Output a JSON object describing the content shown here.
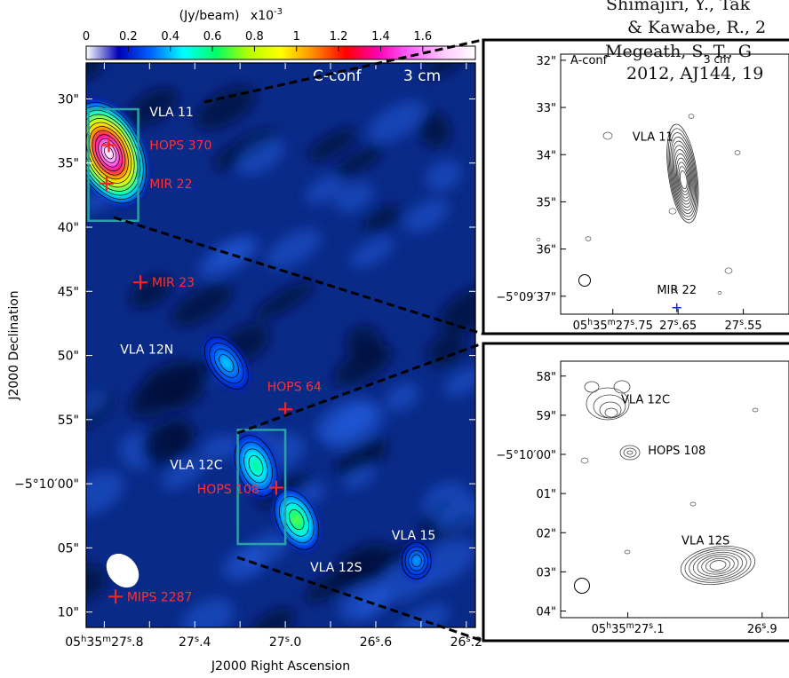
{
  "chart_data": [
    {
      "type": "heatmap",
      "title": "C-conf",
      "band": "3 cm",
      "colorbar": {
        "label": "(Jy/beam)",
        "scale": "x10",
        "scale_exp": "-3",
        "ticks": [
          "0",
          "0.2",
          "0.4",
          "0.6",
          "0.8",
          "1",
          "1.2",
          "1.4",
          "1.6"
        ],
        "range": [
          0,
          1.85
        ],
        "colors": [
          "#ffffff",
          "#0000b4",
          "#0064ff",
          "#00ffff",
          "#00ff64",
          "#b4ff00",
          "#ffff00",
          "#ff8c00",
          "#ff0000",
          "#ff00b4",
          "#ff64ff",
          "#ffc8ff",
          "#ffffff"
        ]
      },
      "xlabel": "J2000 Right Ascension",
      "ylabel": "J2000 Declination",
      "xticks": [
        {
          "ra": 27.8,
          "h": "05",
          "m": "35",
          "s": "27",
          "f": ".8"
        },
        {
          "ra": 27.6,
          "s": "27",
          "f": ".6"
        },
        {
          "ra": 27.4,
          "s": "27",
          "f": ".4"
        },
        {
          "ra": 27.2,
          "s": "27",
          "f": ".2"
        },
        {
          "ra": 27.0,
          "s": "27",
          "f": ".0"
        },
        {
          "ra": 26.8,
          "s": "26",
          "f": ".8"
        },
        {
          "ra": 26.6,
          "s": "26",
          "f": ".6"
        },
        {
          "ra": 26.4,
          "s": "26",
          "f": ".4"
        },
        {
          "ra": 26.2,
          "s": "26",
          "f": ".2"
        }
      ],
      "xticklabel_ra": [
        27.8,
        27.4,
        27.0,
        26.6,
        26.2
      ],
      "yticks": [
        {
          "dec": 30,
          "label": "30\""
        },
        {
          "dec": 35,
          "label": "35\""
        },
        {
          "dec": 40,
          "label": "40\""
        },
        {
          "dec": 45,
          "label": "45\""
        },
        {
          "dec": 50,
          "label": "50\""
        },
        {
          "dec": 55,
          "label": "55\""
        },
        {
          "dec": 60,
          "label": "−5°10′00\""
        },
        {
          "dec": 65,
          "label": "05\""
        },
        {
          "dec": 70,
          "label": "10\""
        }
      ],
      "xlim": [
        27.88,
        26.16
      ],
      "ylim": [
        27.2,
        71.2
      ],
      "sources": [
        {
          "name": "VLA 11",
          "ra": 27.78,
          "dec": 34.2,
          "peak": 1.85
        },
        {
          "name": "VLA 12N",
          "ra": 27.26,
          "dec": 50.6,
          "peak": 0.42
        },
        {
          "name": "VLA 12C",
          "ra": 27.13,
          "dec": 58.6,
          "peak": 0.6
        },
        {
          "name": "VLA 12S",
          "ra": 26.95,
          "dec": 62.8,
          "peak": 0.72
        },
        {
          "name": "VLA 15",
          "ra": 26.42,
          "dec": 66.0,
          "peak": 0.38
        }
      ],
      "source_labels": [
        {
          "name": "VLA 11",
          "ra": 27.6,
          "dec": 31.0
        },
        {
          "name": "VLA 12N",
          "ra": 27.73,
          "dec": 49.5
        },
        {
          "name": "VLA 12C",
          "ra": 27.51,
          "dec": 58.5
        },
        {
          "name": "VLA 12S",
          "ra": 26.89,
          "dec": 66.5
        },
        {
          "name": "VLA 15",
          "ra": 26.53,
          "dec": 64.0
        }
      ],
      "markers": [
        {
          "name": "HOPS 370",
          "ra": 27.78,
          "dec": 33.6,
          "lra": 27.6,
          "ldec": 33.6
        },
        {
          "name": "MIR 22",
          "ra": 27.79,
          "dec": 36.6,
          "lra": 27.6,
          "ldec": 36.6
        },
        {
          "name": "MIR 23",
          "ra": 27.64,
          "dec": 44.3,
          "lra": 27.59,
          "ldec": 44.3
        },
        {
          "name": "HOPS 64",
          "ra": 27.0,
          "dec": 54.2,
          "lra": 27.08,
          "ldec": 52.4
        },
        {
          "name": "HOPS 108",
          "ra": 27.04,
          "dec": 60.3,
          "lra": 27.39,
          "ldec": 60.4
        },
        {
          "name": "MIPS 2287",
          "ra": 27.75,
          "dec": 68.8,
          "lra": 27.7,
          "ldec": 68.8
        }
      ],
      "boxes": [
        {
          "ra": [
            27.87,
            27.65
          ],
          "dec": [
            30.8,
            39.5
          ]
        },
        {
          "ra": [
            27.21,
            27.0
          ],
          "dec": [
            55.8,
            64.7
          ]
        }
      ]
    },
    {
      "type": "contour",
      "title": "A-conf",
      "band": "3 cm",
      "xticks": [
        {
          "ra": 27.75,
          "h": "05",
          "m": "35",
          "s": "27",
          "f": ".75"
        },
        {
          "ra": 27.65,
          "s": "27",
          "f": ".65"
        },
        {
          "ra": 27.55,
          "s": "27",
          "f": ".55"
        }
      ],
      "yticks": [
        {
          "dec": 32,
          "label": "32\""
        },
        {
          "dec": 33,
          "label": "33\""
        },
        {
          "dec": 34,
          "label": "34\""
        },
        {
          "dec": 35,
          "label": "35\""
        },
        {
          "dec": 36,
          "label": "36\""
        },
        {
          "dec": 37,
          "label": "−5°09′37\""
        }
      ],
      "xlim": [
        27.83,
        27.48
      ],
      "ylim": [
        31.87,
        37.38
      ],
      "labels": [
        {
          "name": "VLA 11",
          "ra": 27.72,
          "dec": 33.7
        }
      ],
      "markers": [
        {
          "name": "MIR 22",
          "ra": 27.652,
          "dec": 37.0
        }
      ]
    },
    {
      "type": "contour",
      "title": "",
      "xticks": [
        {
          "ra": 27.1,
          "h": "05",
          "m": "35",
          "s": "27",
          "f": ".1"
        },
        {
          "ra": 26.9,
          "s": "26",
          "f": ".9"
        }
      ],
      "yticks": [
        {
          "dec": 58,
          "label": "58\""
        },
        {
          "dec": 59,
          "label": "59\""
        },
        {
          "dec": 60,
          "label": "−5°10′00\""
        },
        {
          "dec": 61,
          "label": "01\""
        },
        {
          "dec": 62,
          "label": "02\""
        },
        {
          "dec": 63,
          "label": "03\""
        },
        {
          "dec": 64,
          "label": "04\""
        }
      ],
      "xlim": [
        27.2,
        26.86
      ],
      "ylim": [
        57.62,
        64.17
      ],
      "labels": [
        {
          "name": "VLA 12C",
          "ra": 27.11,
          "dec": 58.7
        },
        {
          "name": "HOPS 108",
          "ra": 27.07,
          "dec": 60.0
        },
        {
          "name": "VLA 12S",
          "ra": 27.02,
          "dec": 62.3
        }
      ]
    }
  ],
  "reference": {
    "line1": "Shimajiri, Y., Tak",
    "line2": "& Kawabe, R., 2",
    "line3": "Megeath, S. T., G",
    "line4": "2012, AJ144, 19"
  }
}
